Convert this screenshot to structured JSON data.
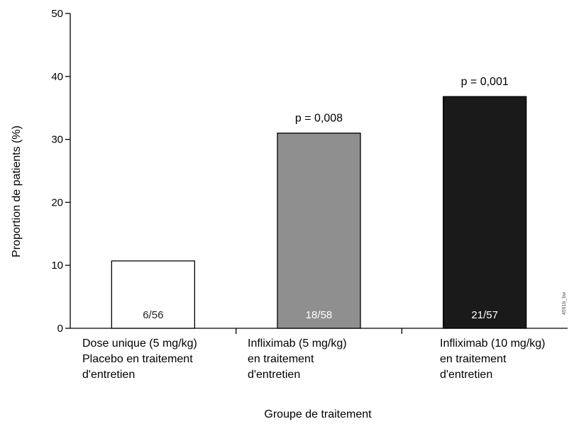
{
  "chart_data": {
    "type": "bar",
    "title": "",
    "xlabel": "Groupe de traitement",
    "ylabel": "Proportion de patients (%)",
    "ylim": [
      0,
      50
    ],
    "yticks": [
      0,
      10,
      20,
      30,
      40,
      50
    ],
    "grid": false,
    "legend": "none",
    "categories": [
      [
        "Dose unique (5 mg/kg)",
        "Placebo en traitement",
        "d'entretien"
      ],
      [
        "Infliximab (5 mg/kg)",
        "en traitement",
        "d'entretien"
      ],
      [
        "Infliximab (10 mg/kg)",
        "en traitement",
        "d'entretien"
      ]
    ],
    "values": [
      10.7,
      31.0,
      36.8
    ],
    "bar_labels": [
      "6/56",
      "18/58",
      "21/57"
    ],
    "annotations": [
      "",
      "p = 0,008",
      "p = 0,001"
    ],
    "colors": [
      "#ffffff",
      "#8f8f8f",
      "#1a1a1a"
    ],
    "label_colors": [
      "#222222",
      "#ffffff",
      "#ffffff"
    ],
    "corner_stamp": "4591b_bw"
  }
}
